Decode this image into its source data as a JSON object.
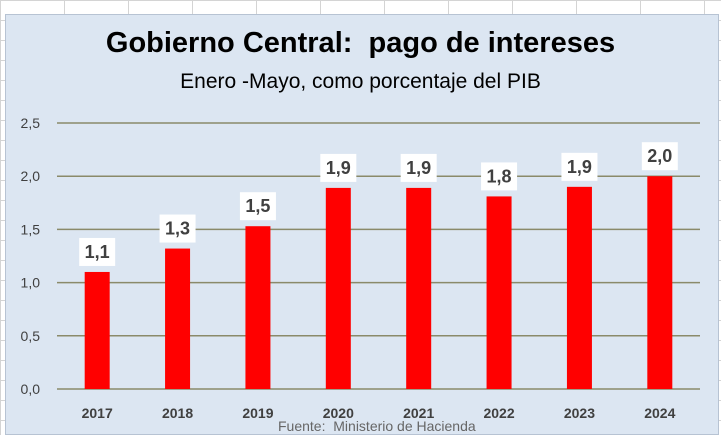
{
  "chart_data": {
    "type": "bar",
    "title": "Gobierno Central:  pago de intereses",
    "subtitle": "Enero -Mayo, como porcentaje del PIB",
    "categories": [
      "2017",
      "2018",
      "2019",
      "2020",
      "2021",
      "2022",
      "2023",
      "2024"
    ],
    "values": [
      1.1,
      1.32,
      1.53,
      1.89,
      1.89,
      1.81,
      1.9,
      2.0
    ],
    "data_labels": [
      "1,1",
      "1,3",
      "1,5",
      "1,9",
      "1,9",
      "1,8",
      "1,9",
      "2,0"
    ],
    "y_ticks": [
      0,
      0.5,
      1,
      1.5,
      2,
      2.5
    ],
    "y_tick_labels": [
      "0,0",
      "0,5",
      "1,0",
      "1,5",
      "2,0",
      "2,5"
    ],
    "ylim": [
      0,
      2.5
    ],
    "grid": true,
    "legend": "none",
    "bar_color": "#ff0000",
    "grid_color": "#8a8a6a",
    "plot_background": "#dce6f2",
    "source": "Fuente:  Ministerio de Hacienda"
  }
}
